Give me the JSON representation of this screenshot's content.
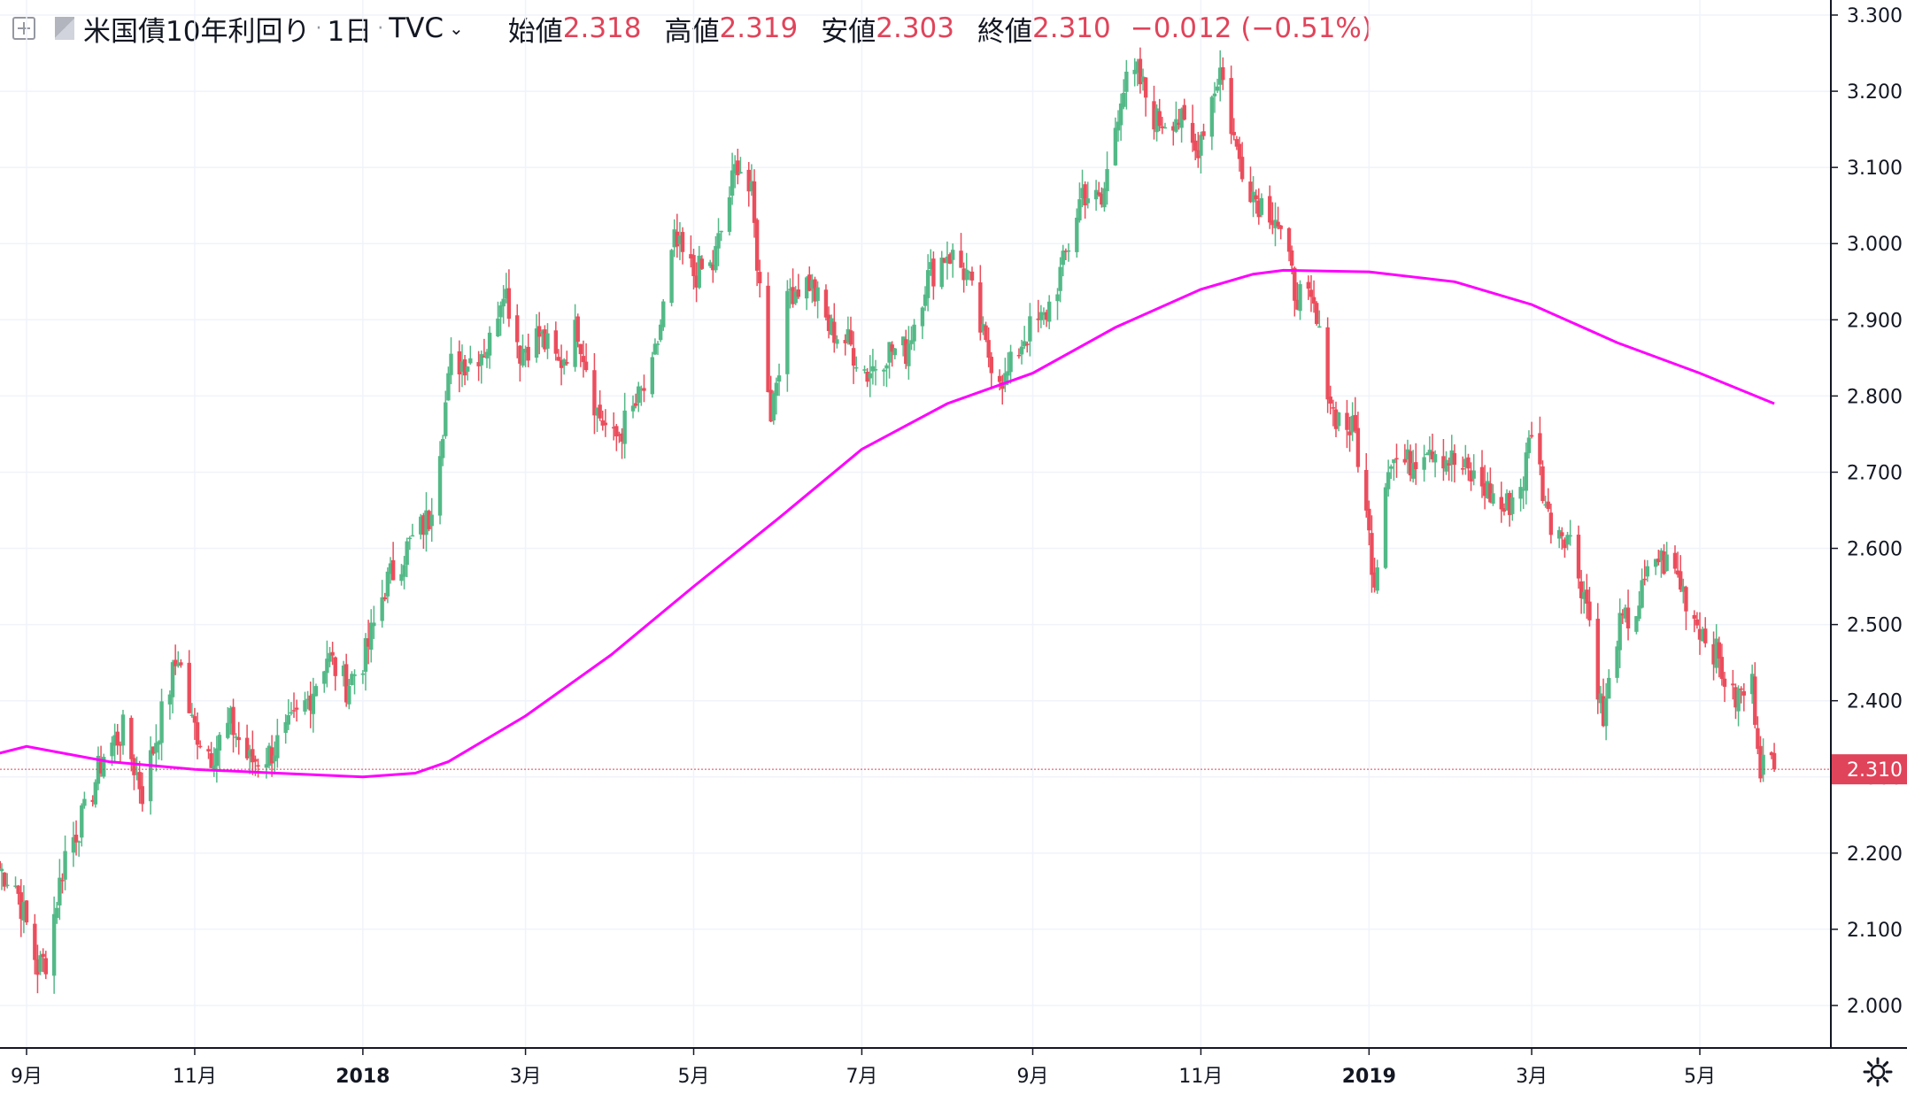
{
  "legend": {
    "symbol": "米国債10年利回り",
    "interval": "1日",
    "source": "TVC",
    "open_label": "始値",
    "open": "2.318",
    "high_label": "高値",
    "high": "2.319",
    "low_label": "安値",
    "low": "2.303",
    "close_label": "終値",
    "close": "2.310",
    "change": "−0.012 (−0.51%)"
  },
  "colors": {
    "up": "#53b987",
    "down": "#eb4d5c",
    "ma": "#ff00ff",
    "price_label": "#e0445a",
    "grid": "#f0f3fa",
    "axis": "#131722"
  },
  "icons": [
    "plus-square-icon",
    "flag-icon",
    "chevron-down-icon",
    "settings-gear-icon"
  ],
  "chart_data": {
    "type": "candlestick",
    "title": "米国債10年利回り · 1日 · TVC",
    "y_range": [
      1.96,
      3.31
    ],
    "y_ticks": [
      "3.300",
      "3.200",
      "3.100",
      "3.000",
      "2.900",
      "2.800",
      "2.700",
      "2.600",
      "2.500",
      "2.400",
      "2.300",
      "2.200",
      "2.100",
      "2.000"
    ],
    "x_ticks": [
      {
        "label": "9月",
        "date": "2017-09-01"
      },
      {
        "label": "11月",
        "date": "2017-11-01"
      },
      {
        "label": "2018",
        "date": "2018-01-01",
        "bold": true
      },
      {
        "label": "3月",
        "date": "2018-03-01"
      },
      {
        "label": "5月",
        "date": "2018-05-01"
      },
      {
        "label": "7月",
        "date": "2018-07-01"
      },
      {
        "label": "9月",
        "date": "2018-09-01"
      },
      {
        "label": "11月",
        "date": "2018-11-01"
      },
      {
        "label": "2019",
        "date": "2019-01-01",
        "bold": true
      },
      {
        "label": "3月",
        "date": "2019-03-01"
      },
      {
        "label": "5月",
        "date": "2019-05-01"
      }
    ],
    "x_range": [
      "2017-08-21",
      "2019-07-06"
    ],
    "last_price": "2.310",
    "close_keypoints": [
      [
        "2017-08-22",
        2.18
      ],
      [
        "2017-08-28",
        2.16
      ],
      [
        "2017-09-05",
        2.05
      ],
      [
        "2017-09-08",
        2.06
      ],
      [
        "2017-09-15",
        2.2
      ],
      [
        "2017-09-22",
        2.25
      ],
      [
        "2017-09-29",
        2.33
      ],
      [
        "2017-10-06",
        2.36
      ],
      [
        "2017-10-13",
        2.28
      ],
      [
        "2017-10-20",
        2.38
      ],
      [
        "2017-10-26",
        2.46
      ],
      [
        "2017-10-31",
        2.37
      ],
      [
        "2017-11-07",
        2.33
      ],
      [
        "2017-11-14",
        2.37
      ],
      [
        "2017-11-21",
        2.32
      ],
      [
        "2017-11-28",
        2.33
      ],
      [
        "2017-12-05",
        2.36
      ],
      [
        "2017-12-12",
        2.4
      ],
      [
        "2017-12-19",
        2.46
      ],
      [
        "2017-12-26",
        2.42
      ],
      [
        "2018-01-02",
        2.46
      ],
      [
        "2018-01-09",
        2.55
      ],
      [
        "2018-01-17",
        2.6
      ],
      [
        "2018-01-25",
        2.64
      ],
      [
        "2018-02-02",
        2.84
      ],
      [
        "2018-02-09",
        2.85
      ],
      [
        "2018-02-16",
        2.87
      ],
      [
        "2018-02-21",
        2.95
      ],
      [
        "2018-02-27",
        2.86
      ],
      [
        "2018-03-06",
        2.88
      ],
      [
        "2018-03-13",
        2.84
      ],
      [
        "2018-03-20",
        2.89
      ],
      [
        "2018-03-27",
        2.78
      ],
      [
        "2018-04-02",
        2.74
      ],
      [
        "2018-04-09",
        2.78
      ],
      [
        "2018-04-16",
        2.83
      ],
      [
        "2018-04-24",
        3.0
      ],
      [
        "2018-05-01",
        2.96
      ],
      [
        "2018-05-08",
        2.97
      ],
      [
        "2018-05-17",
        3.11
      ],
      [
        "2018-05-22",
        3.06
      ],
      [
        "2018-05-29",
        2.78
      ],
      [
        "2018-06-05",
        2.94
      ],
      [
        "2018-06-12",
        2.95
      ],
      [
        "2018-06-19",
        2.89
      ],
      [
        "2018-06-26",
        2.87
      ],
      [
        "2018-07-03",
        2.83
      ],
      [
        "2018-07-10",
        2.86
      ],
      [
        "2018-07-17",
        2.86
      ],
      [
        "2018-07-24",
        2.95
      ],
      [
        "2018-08-01",
        2.99
      ],
      [
        "2018-08-08",
        2.96
      ],
      [
        "2018-08-15",
        2.86
      ],
      [
        "2018-08-22",
        2.82
      ],
      [
        "2018-08-29",
        2.88
      ],
      [
        "2018-09-05",
        2.9
      ],
      [
        "2018-09-12",
        2.97
      ],
      [
        "2018-09-19",
        3.07
      ],
      [
        "2018-09-26",
        3.05
      ],
      [
        "2018-10-03",
        3.2
      ],
      [
        "2018-10-09",
        3.22
      ],
      [
        "2018-10-16",
        3.16
      ],
      [
        "2018-10-23",
        3.17
      ],
      [
        "2018-10-30",
        3.12
      ],
      [
        "2018-11-08",
        3.23
      ],
      [
        "2018-11-14",
        3.12
      ],
      [
        "2018-11-21",
        3.06
      ],
      [
        "2018-11-28",
        3.04
      ],
      [
        "2018-12-05",
        2.94
      ],
      [
        "2018-12-12",
        2.91
      ],
      [
        "2018-12-19",
        2.78
      ],
      [
        "2018-12-27",
        2.75
      ],
      [
        "2019-01-03",
        2.56
      ],
      [
        "2019-01-08",
        2.72
      ],
      [
        "2019-01-15",
        2.71
      ],
      [
        "2019-01-22",
        2.74
      ],
      [
        "2019-01-29",
        2.72
      ],
      [
        "2019-02-05",
        2.7
      ],
      [
        "2019-02-12",
        2.68
      ],
      [
        "2019-02-19",
        2.65
      ],
      [
        "2019-02-26",
        2.69
      ],
      [
        "2019-03-01",
        2.76
      ],
      [
        "2019-03-07",
        2.64
      ],
      [
        "2019-03-14",
        2.62
      ],
      [
        "2019-03-21",
        2.53
      ],
      [
        "2019-03-27",
        2.37
      ],
      [
        "2019-04-01",
        2.49
      ],
      [
        "2019-04-08",
        2.52
      ],
      [
        "2019-04-15",
        2.59
      ],
      [
        "2019-04-22",
        2.57
      ],
      [
        "2019-04-29",
        2.51
      ],
      [
        "2019-05-06",
        2.47
      ],
      [
        "2019-05-13",
        2.4
      ],
      [
        "2019-05-20",
        2.42
      ],
      [
        "2019-05-23",
        2.32
      ],
      [
        "2019-05-28",
        2.31
      ]
    ],
    "ma_series": {
      "color": "#ff00ff",
      "points": [
        [
          "2017-08-21",
          2.33
        ],
        [
          "2017-09-01",
          2.34
        ],
        [
          "2017-10-01",
          2.32
        ],
        [
          "2017-11-01",
          2.31
        ],
        [
          "2017-12-01",
          2.305
        ],
        [
          "2018-01-01",
          2.3
        ],
        [
          "2018-01-20",
          2.305
        ],
        [
          "2018-02-01",
          2.32
        ],
        [
          "2018-03-01",
          2.38
        ],
        [
          "2018-04-01",
          2.46
        ],
        [
          "2018-05-01",
          2.55
        ],
        [
          "2018-06-01",
          2.64
        ],
        [
          "2018-07-01",
          2.73
        ],
        [
          "2018-08-01",
          2.79
        ],
        [
          "2018-09-01",
          2.83
        ],
        [
          "2018-10-01",
          2.89
        ],
        [
          "2018-11-01",
          2.94
        ],
        [
          "2018-11-20",
          2.96
        ],
        [
          "2018-12-01",
          2.965
        ],
        [
          "2019-01-01",
          2.963
        ],
        [
          "2019-02-01",
          2.95
        ],
        [
          "2019-03-01",
          2.92
        ],
        [
          "2019-04-01",
          2.87
        ],
        [
          "2019-05-01",
          2.83
        ],
        [
          "2019-05-28",
          2.79
        ]
      ]
    }
  }
}
